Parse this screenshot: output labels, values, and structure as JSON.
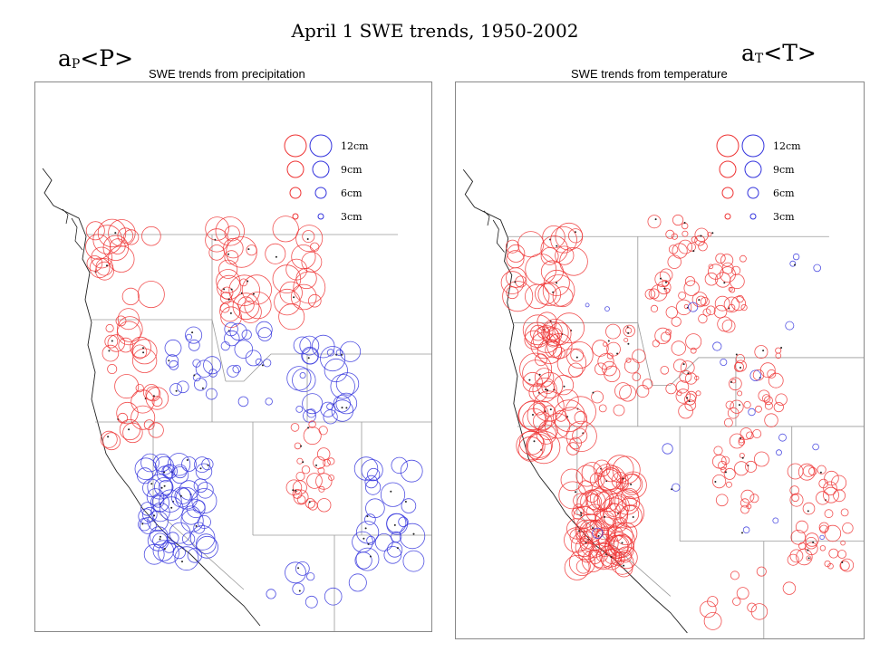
{
  "slide": {
    "title": "April 1 SWE trends, 1950-2002"
  },
  "labels": {
    "left_main": "a",
    "left_sub": "P",
    "left_tail": "<P>",
    "right_main": "a",
    "right_sub": "T",
    "right_tail": "<T>"
  },
  "colors": {
    "positive": "#ee3333",
    "negative": "#3333dd",
    "boundary": "#9a9a9a",
    "coast": "#222222",
    "frame": "#888888"
  },
  "panels": [
    {
      "id": "precip",
      "title": "SWE trends from precipitation",
      "legend": [
        "12cm",
        "9cm",
        "6cm",
        "3cm"
      ],
      "legend_values_cm": [
        12,
        9,
        6,
        3
      ],
      "seed": 7,
      "clusters": [
        {
          "region": "pacific-nw-coast",
          "color": "positive",
          "n": 18,
          "rmin": 6,
          "rmax": 16
        },
        {
          "region": "oregon-cascades",
          "color": "positive",
          "n": 30,
          "rmin": 4,
          "rmax": 14
        },
        {
          "region": "sierra-nevada",
          "color": "negative",
          "n": 60,
          "rmin": 6,
          "rmax": 14
        },
        {
          "region": "northern-rockies",
          "color": "positive",
          "n": 40,
          "rmin": 4,
          "rmax": 18
        },
        {
          "region": "idaho",
          "color": "negative",
          "n": 30,
          "rmin": 3,
          "rmax": 10
        },
        {
          "region": "wyoming-east",
          "color": "negative",
          "n": 25,
          "rmin": 3,
          "rmax": 14
        },
        {
          "region": "utah",
          "color": "positive",
          "n": 25,
          "rmin": 3,
          "rmax": 10
        },
        {
          "region": "colorado",
          "color": "negative",
          "n": 25,
          "rmin": 4,
          "rmax": 14
        },
        {
          "region": "arizona",
          "color": "negative",
          "n": 8,
          "rmin": 4,
          "rmax": 12
        }
      ]
    },
    {
      "id": "temp",
      "title": "SWE trends from temperature",
      "legend": [
        "12cm",
        "9cm",
        "6cm",
        "3cm"
      ],
      "legend_values_cm": [
        12,
        9,
        6,
        3
      ],
      "seed": 13,
      "clusters": [
        {
          "region": "pacific-nw-coast",
          "color": "positive",
          "n": 25,
          "rmin": 6,
          "rmax": 18
        },
        {
          "region": "oregon-cascades",
          "color": "positive",
          "n": 60,
          "rmin": 6,
          "rmax": 18
        },
        {
          "region": "sierra-nevada",
          "color": "positive",
          "n": 90,
          "rmin": 6,
          "rmax": 16
        },
        {
          "region": "northern-rockies",
          "color": "positive",
          "n": 60,
          "rmin": 2,
          "rmax": 9
        },
        {
          "region": "idaho",
          "color": "positive",
          "n": 45,
          "rmin": 2,
          "rmax": 9
        },
        {
          "region": "wyoming-east",
          "color": "positive",
          "n": 25,
          "rmin": 2,
          "rmax": 8
        },
        {
          "region": "utah",
          "color": "positive",
          "n": 25,
          "rmin": 2,
          "rmax": 8
        },
        {
          "region": "colorado",
          "color": "positive",
          "n": 40,
          "rmin": 2,
          "rmax": 9
        },
        {
          "region": "arizona",
          "color": "positive",
          "n": 10,
          "rmin": 4,
          "rmax": 10
        },
        {
          "region": "scattered",
          "color": "negative",
          "n": 20,
          "rmin": 2,
          "rmax": 6
        }
      ]
    }
  ]
}
